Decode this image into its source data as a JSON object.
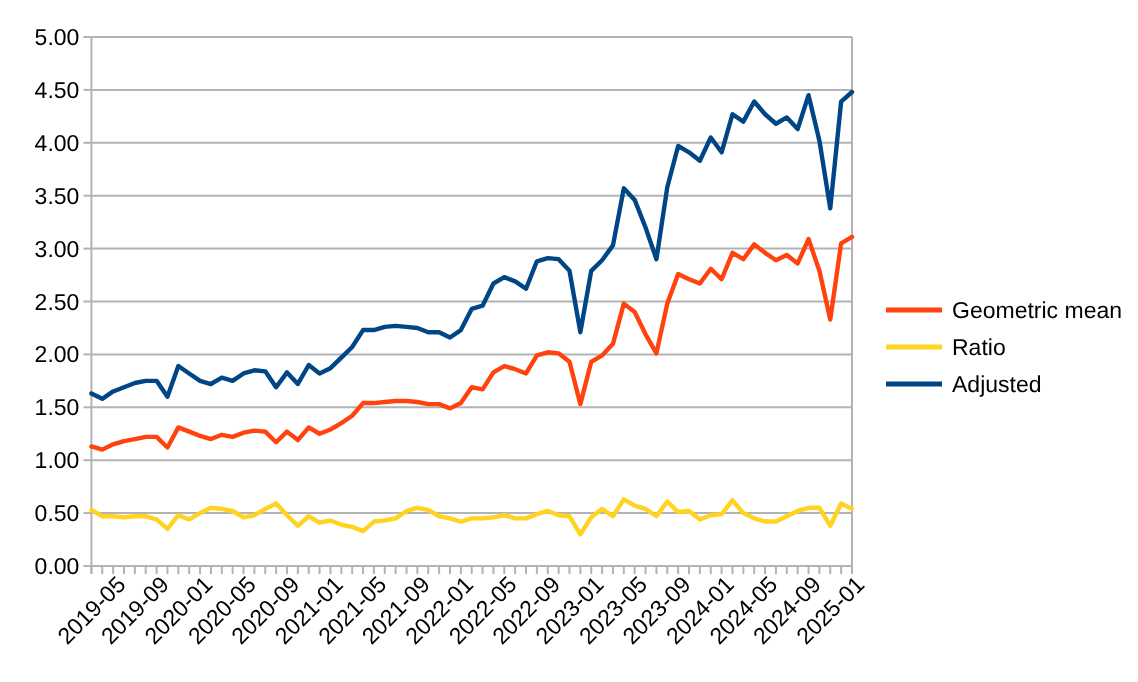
{
  "chart_data": {
    "type": "line",
    "categories": [
      "2019-05",
      null,
      null,
      null,
      "2019-09",
      null,
      null,
      null,
      "2020-01",
      null,
      null,
      null,
      "2020-05",
      null,
      null,
      null,
      "2020-09",
      null,
      null,
      null,
      "2021-01",
      null,
      null,
      null,
      "2021-05",
      null,
      null,
      null,
      "2021-09",
      null,
      null,
      null,
      "2022-01",
      null,
      null,
      null,
      "2022-05",
      null,
      null,
      null,
      "2022-09",
      null,
      null,
      null,
      "2023-01",
      null,
      null,
      null,
      "2023-05",
      null,
      null,
      null,
      "2023-09",
      null,
      null,
      null,
      "2024-01",
      null,
      null,
      null,
      "2024-05",
      null,
      null,
      null,
      "2024-09",
      null,
      null,
      null,
      "2025-01",
      null,
      null
    ],
    "series": [
      {
        "name": "Geometric mean",
        "color": "#ff420e",
        "values": [
          1.13,
          1.1,
          1.15,
          1.18,
          1.2,
          1.22,
          1.22,
          1.12,
          1.31,
          1.27,
          1.23,
          1.2,
          1.24,
          1.22,
          1.26,
          1.28,
          1.27,
          1.17,
          1.27,
          1.19,
          1.31,
          1.25,
          1.29,
          1.35,
          1.42,
          1.54,
          1.54,
          1.55,
          1.56,
          1.56,
          1.55,
          1.53,
          1.53,
          1.49,
          1.54,
          1.69,
          1.67,
          1.83,
          1.89,
          1.86,
          1.82,
          1.99,
          2.02,
          2.01,
          1.93,
          1.53,
          1.93,
          1.99,
          2.1,
          2.48,
          2.4,
          2.19,
          2.01,
          2.48,
          2.76,
          2.71,
          2.67,
          2.81,
          2.71,
          2.96,
          2.9,
          3.04,
          2.96,
          2.89,
          2.94,
          2.86,
          3.09,
          2.79,
          2.33,
          3.05,
          3.11
        ]
      },
      {
        "name": "Ratio",
        "color": "#ffd320",
        "values": [
          0.53,
          0.47,
          0.47,
          0.46,
          0.47,
          0.47,
          0.44,
          0.35,
          0.48,
          0.44,
          0.5,
          0.55,
          0.54,
          0.52,
          0.46,
          0.48,
          0.54,
          0.59,
          0.48,
          0.38,
          0.47,
          0.41,
          0.43,
          0.39,
          0.37,
          0.33,
          0.42,
          0.43,
          0.45,
          0.52,
          0.55,
          0.53,
          0.47,
          0.45,
          0.42,
          0.45,
          0.45,
          0.46,
          0.48,
          0.45,
          0.45,
          0.49,
          0.52,
          0.48,
          0.47,
          0.3,
          0.46,
          0.54,
          0.47,
          0.63,
          0.57,
          0.54,
          0.47,
          0.61,
          0.51,
          0.52,
          0.44,
          0.48,
          0.49,
          0.62,
          0.5,
          0.45,
          0.42,
          0.42,
          0.47,
          0.52,
          0.55,
          0.55,
          0.38,
          0.59,
          0.54
        ]
      },
      {
        "name": "Adjusted",
        "color": "#004586",
        "values": [
          1.63,
          1.58,
          1.65,
          1.69,
          1.73,
          1.75,
          1.75,
          1.6,
          1.89,
          1.82,
          1.75,
          1.72,
          1.78,
          1.75,
          1.82,
          1.85,
          1.84,
          1.69,
          1.83,
          1.72,
          1.9,
          1.82,
          1.87,
          1.97,
          2.07,
          2.23,
          2.23,
          2.26,
          2.27,
          2.26,
          2.25,
          2.21,
          2.21,
          2.16,
          2.23,
          2.43,
          2.46,
          2.67,
          2.73,
          2.69,
          2.62,
          2.88,
          2.91,
          2.9,
          2.79,
          2.21,
          2.79,
          2.89,
          3.03,
          3.57,
          3.46,
          3.2,
          2.9,
          3.58,
          3.97,
          3.91,
          3.83,
          4.05,
          3.91,
          4.27,
          4.2,
          4.39,
          4.27,
          4.18,
          4.24,
          4.13,
          4.45,
          4.02,
          3.38,
          4.39,
          4.48
        ]
      }
    ],
    "ylim": [
      0,
      5
    ],
    "yticks": [
      {
        "value": 0,
        "label": "0.00"
      },
      {
        "value": 0.5,
        "label": "0.50"
      },
      {
        "value": 1,
        "label": "1.00"
      },
      {
        "value": 1.5,
        "label": "1.50"
      },
      {
        "value": 2,
        "label": "2.00"
      },
      {
        "value": 2.5,
        "label": "2.50"
      },
      {
        "value": 3,
        "label": "3.00"
      },
      {
        "value": 3.5,
        "label": "3.50"
      },
      {
        "value": 4,
        "label": "4.00"
      },
      {
        "value": 4.5,
        "label": "4.50"
      },
      {
        "value": 5,
        "label": "5.00"
      }
    ],
    "grid": "y",
    "legend": "right",
    "marker": "none",
    "line_style": "solid"
  }
}
